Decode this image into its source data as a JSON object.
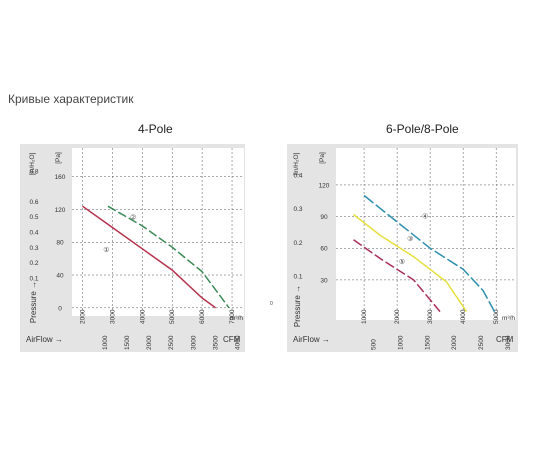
{
  "page": {
    "title": "Кривые характеристик",
    "stray_label": "0"
  },
  "chart_data": [
    {
      "type": "line",
      "title": "4-Pole",
      "ylabel": "Pressure",
      "xlabel": "AirFlow",
      "y_pa_ticks": [
        "0",
        "40",
        "80",
        "120",
        "160"
      ],
      "y_pa_unit": "[Pa]",
      "y_inh2o_ticks": [
        "0.1",
        "0.2",
        "0.3",
        "0.4",
        "0.5",
        "0.6",
        "0.8"
      ],
      "y_inh2o_unit": "[in/H₂O]",
      "y_inh2o_values": [
        0.1,
        0.2,
        0.3,
        0.4,
        0.5,
        0.6,
        0.8
      ],
      "x_m3h_ticks": [
        "2000",
        "3000",
        "4000",
        "5000",
        "6000",
        "7000"
      ],
      "x_m3h_unit": "m³/h",
      "x_cfm_ticks": [
        "1000",
        "1500",
        "2000",
        "2500",
        "3000",
        "3500",
        "4000"
      ],
      "x_cfm_unit": "CFM",
      "x_cfm_values": [
        1000,
        1500,
        2000,
        2500,
        3000,
        3500,
        4000
      ],
      "xlim_m3h": [
        1650,
        7400
      ],
      "ylim_pa": [
        -10,
        195
      ],
      "series": [
        {
          "name": "①",
          "color": "#b5304a",
          "dash": "none",
          "x": [
            2000,
            3000,
            4000,
            5000,
            6000,
            6450
          ],
          "y": [
            124,
            98,
            72,
            46,
            12,
            0
          ]
        },
        {
          "name": "②",
          "color": "#3a8a56",
          "dash": "9,3",
          "x": [
            2850,
            4000,
            5000,
            6000,
            6900
          ],
          "y": [
            124,
            100,
            74,
            44,
            0
          ]
        }
      ]
    },
    {
      "type": "line",
      "title": "6-Pole/8-Pole",
      "ylabel": "Pressure",
      "xlabel": "AirFlow",
      "y_pa_ticks": [
        "30",
        "60",
        "90",
        "120"
      ],
      "y_pa_unit": "[Pa]",
      "y_inh2o_ticks": [
        "0.1",
        "0.2",
        "0.3",
        "0.4"
      ],
      "y_inh2o_unit": "[in/H₂O]",
      "y_inh2o_values": [
        0.1,
        0.2,
        0.3,
        0.4
      ],
      "x_m3h_ticks": [
        "1000",
        "2000",
        "3000",
        "4000",
        "5000"
      ],
      "x_m3h_unit": "m³/h",
      "x_cfm_ticks": [
        "500",
        "1000",
        "1500",
        "2000",
        "2500",
        "3000"
      ],
      "x_cfm_unit": "CFM",
      "x_cfm_values": [
        500,
        1000,
        1500,
        2000,
        2500,
        3000
      ],
      "xlim_m3h": [
        150,
        5600
      ],
      "ylim_pa": [
        -8,
        155
      ],
      "series": [
        {
          "name": "④",
          "color": "#2e8fae",
          "dash": "12,3",
          "x": [
            1000,
            2000,
            3000,
            4000,
            4600,
            4950
          ],
          "y": [
            110,
            85,
            60,
            40,
            20,
            0
          ]
        },
        {
          "name": "③",
          "color": "#e6e040",
          "dash": "none",
          "x": [
            680,
            1500,
            2500,
            3500,
            4100
          ],
          "y": [
            92,
            72,
            52,
            28,
            0
          ]
        },
        {
          "name": "⑤",
          "color": "#a9305a",
          "dash": "10,3",
          "x": [
            680,
            1500,
            2500,
            3300
          ],
          "y": [
            68,
            50,
            30,
            0
          ]
        }
      ]
    }
  ]
}
